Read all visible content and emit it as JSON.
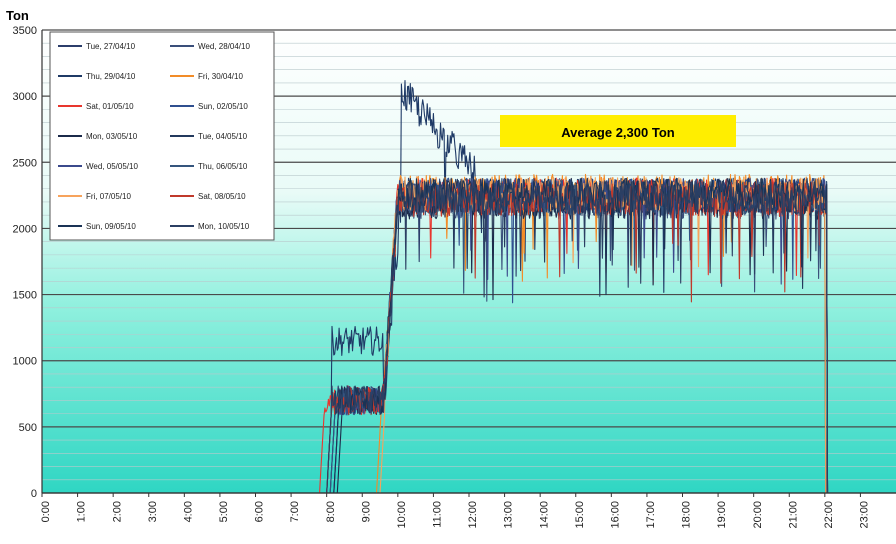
{
  "chart_data": {
    "type": "line",
    "title": "",
    "ylabel": "Ton",
    "xlabel": "",
    "ylim": [
      0,
      3500
    ],
    "yticks": [
      0,
      500,
      1000,
      1500,
      2000,
      2500,
      3000,
      3500
    ],
    "xticks": [
      "0:00",
      "1:00",
      "2:00",
      "3:00",
      "4:00",
      "5:00",
      "6:00",
      "7:00",
      "8:00",
      "9:00",
      "10:00",
      "11:00",
      "12:00",
      "13:00",
      "14:00",
      "15:00",
      "16:00",
      "17:00",
      "18:00",
      "19:00",
      "20:00",
      "21:00",
      "22:00",
      "23:00"
    ],
    "xlim_hours": [
      0,
      24
    ],
    "grid": true,
    "legend_position": "top-left",
    "annotation": "Average 2,300 Ton",
    "background": "aqua gradient",
    "series": [
      {
        "name": "Tue, 27/04/10",
        "color": "#2c3e6b",
        "start": 8.1,
        "ramp_end": 10.0,
        "end": 22.05,
        "plateau": 2250,
        "peak": 2350
      },
      {
        "name": "Wed, 28/04/10",
        "color": "#3a4f7a",
        "start": 8.2,
        "ramp_end": 10.0,
        "end": 22.05,
        "plateau": 2200,
        "peak": 2300
      },
      {
        "name": "Thu, 29/04/10",
        "color": "#1f3a66",
        "start": 8.0,
        "ramp_end": 10.1,
        "end": 22.05,
        "plateau": 2250,
        "peak": 2950
      },
      {
        "name": "Fri, 30/04/10",
        "color": "#f28c28",
        "start": 9.4,
        "ramp_end": 10.0,
        "end": 22.0,
        "plateau": 2280,
        "peak": 2350
      },
      {
        "name": "Sat, 01/05/10",
        "color": "#e8362e",
        "start": 7.8,
        "ramp_end": 10.0,
        "end": 22.05,
        "plateau": 2250,
        "peak": 2400
      },
      {
        "name": "Sun, 02/05/10",
        "color": "#2f4f8f",
        "start": 8.1,
        "ramp_end": 10.0,
        "end": 22.05,
        "plateau": 2250,
        "peak": 2350
      },
      {
        "name": "Mon, 03/05/10",
        "color": "#1b2a4a",
        "start": 8.3,
        "ramp_end": 10.0,
        "end": 22.0,
        "plateau": 2200,
        "peak": 2300
      },
      {
        "name": "Tue, 04/05/10",
        "color": "#23395d",
        "start": 8.0,
        "ramp_end": 10.0,
        "end": 22.05,
        "plateau": 2250,
        "peak": 2300
      },
      {
        "name": "Wed, 05/05/10",
        "color": "#3b4a8c",
        "start": 8.2,
        "ramp_end": 10.0,
        "end": 22.05,
        "plateau": 2250,
        "peak": 2350
      },
      {
        "name": "Thu, 06/05/10",
        "color": "#35557d",
        "start": 8.1,
        "ramp_end": 10.0,
        "end": 22.05,
        "plateau": 2230,
        "peak": 2300
      },
      {
        "name": "Fri, 07/05/10",
        "color": "#f7a35c",
        "start": 9.5,
        "ramp_end": 10.0,
        "end": 22.0,
        "plateau": 2260,
        "peak": 2320
      },
      {
        "name": "Sat, 08/05/10",
        "color": "#c0392b",
        "start": 8.0,
        "ramp_end": 10.0,
        "end": 22.05,
        "plateau": 2220,
        "peak": 2480
      },
      {
        "name": "Sun, 09/05/10",
        "color": "#1a3355",
        "start": 8.2,
        "ramp_end": 10.0,
        "end": 22.05,
        "plateau": 2250,
        "peak": 2350
      },
      {
        "name": "Mon, 10/05/10",
        "color": "#2b3f63",
        "start": 8.0,
        "ramp_end": 10.0,
        "end": 22.05,
        "plateau": 2230,
        "peak": 2300
      }
    ]
  }
}
